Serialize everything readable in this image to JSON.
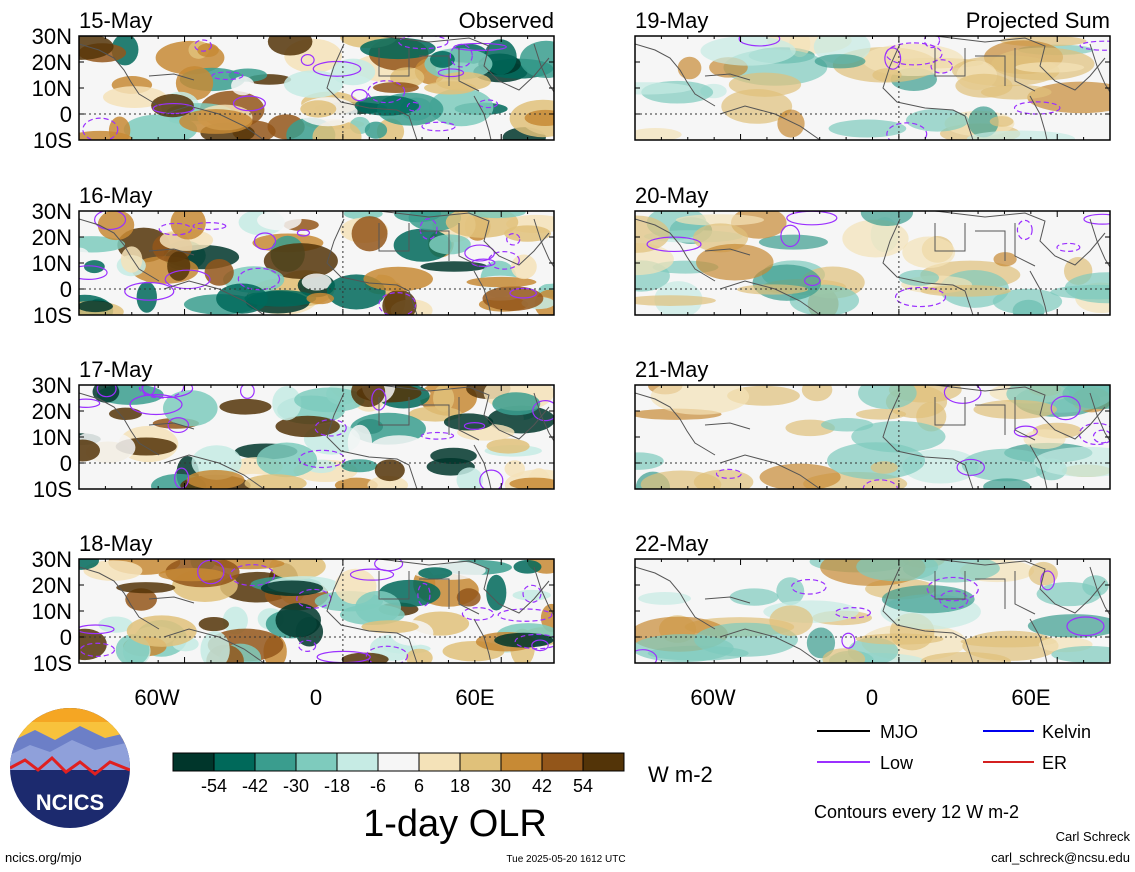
{
  "chart_data": {
    "type": "heatmap",
    "title": "1-day OLR",
    "units": "W m-2",
    "colorbar": {
      "tick_labels": [
        "-54",
        "-42",
        "-30",
        "-18",
        "-6",
        "6",
        "18",
        "30",
        "42",
        "54"
      ],
      "colors": [
        "#00362b",
        "#00695a",
        "#3a9d8e",
        "#7ecbbd",
        "#c6ebe4",
        "#f6f6f6",
        "#f4e2b8",
        "#e0c17a",
        "#c78a35",
        "#93561a",
        "#533408"
      ]
    },
    "lat_labels": [
      "30N",
      "20N",
      "10N",
      "0",
      "10S"
    ],
    "lon_labels": [
      "60W",
      "0",
      "60E"
    ],
    "columns": [
      {
        "label": "Observed",
        "panels": [
          "15-May",
          "16-May",
          "17-May",
          "18-May"
        ]
      },
      {
        "label": "Projected Sum",
        "panels": [
          "19-May",
          "20-May",
          "21-May",
          "22-May"
        ]
      }
    ],
    "legend": {
      "entries": [
        {
          "name": "MJO",
          "color": "#000000"
        },
        {
          "name": "Kelvin",
          "color": "#0000ee"
        },
        {
          "name": "Low",
          "color": "#9b30ff"
        },
        {
          "name": "ER",
          "color": "#d42020"
        }
      ],
      "note": "Contours every 12 W m-2"
    }
  },
  "footer": {
    "url": "ncics.org/mjo",
    "timestamp": "Tue 2025-05-20 1612 UTC",
    "author": "Carl Schreck",
    "email": "carl_schreck@ncsu.edu"
  },
  "logo": {
    "text": "NCICS"
  }
}
